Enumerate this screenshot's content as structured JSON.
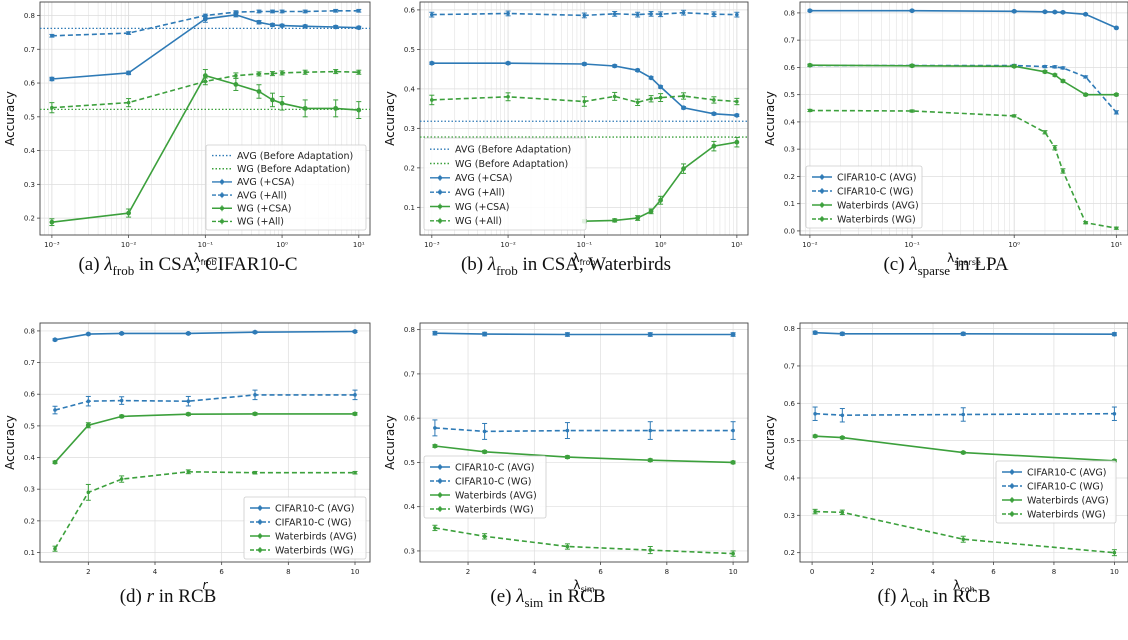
{
  "colors": {
    "blue": "#2e7ab6",
    "green": "#3ca03c",
    "grid": "#dddddd",
    "axis": "#444444"
  },
  "captions": [
    {
      "sym": "λ",
      "sub": "frob",
      "rest": " in CSA, CIFAR10-C",
      "label": "(a)"
    },
    {
      "sym": "λ",
      "sub": "frob",
      "rest": " in CSA, Waterbirds",
      "label": "(b)"
    },
    {
      "sym": "λ",
      "sub": "sparse",
      "rest": " in LPA",
      "label": "(c)"
    },
    {
      "sym": "r",
      "sub": "",
      "rest": " in RCB",
      "label": "(d)"
    },
    {
      "sym": "λ",
      "sub": "sim",
      "rest": " in RCB",
      "label": "(e)"
    },
    {
      "sym": "λ",
      "sub": "coh",
      "rest": " in RCB",
      "label": "(f)"
    }
  ],
  "chart_data": [
    {
      "type": "line",
      "xscale": "log",
      "xlim": [
        0.0007,
        14
      ],
      "ylim": [
        0.15,
        0.84
      ],
      "xticks": [
        0.001,
        0.01,
        0.1,
        1,
        10
      ],
      "xtick_labels": [
        "10⁻³",
        "10⁻²",
        "10⁻¹",
        "10⁰",
        "10¹"
      ],
      "yticks": [
        0.2,
        0.3,
        0.4,
        0.5,
        0.6,
        0.7,
        0.8
      ],
      "ytick_labels": [
        "0.2",
        "0.3",
        "0.4",
        "0.5",
        "0.6",
        "0.7",
        "0.8"
      ],
      "xlabel": "λ",
      "xlabel_sub": "frob",
      "ylabel": "Accuracy",
      "legend": "lower-right",
      "grid": true,
      "hlines": [
        {
          "name": "AVG (Before Adaptation)",
          "y": 0.762,
          "color": "blue"
        },
        {
          "name": "WG (Before Adaptation)",
          "y": 0.522,
          "color": "green"
        }
      ],
      "series": [
        {
          "name": "AVG (+CSA)",
          "color": "blue",
          "dash": false,
          "x": [
            0.001,
            0.01,
            0.1,
            0.25,
            0.5,
            0.75,
            1,
            2,
            5,
            10
          ],
          "y": [
            0.612,
            0.63,
            0.79,
            0.802,
            0.78,
            0.772,
            0.77,
            0.768,
            0.766,
            0.764
          ],
          "err": [
            0.005,
            0.005,
            0.01,
            0.006,
            0.005,
            0.004,
            0.004,
            0.004,
            0.004,
            0.004
          ]
        },
        {
          "name": "AVG (+All)",
          "color": "blue",
          "dash": true,
          "x": [
            0.001,
            0.01,
            0.1,
            0.25,
            0.5,
            0.75,
            1,
            2,
            5,
            10
          ],
          "y": [
            0.74,
            0.748,
            0.8,
            0.81,
            0.812,
            0.812,
            0.812,
            0.812,
            0.814,
            0.814
          ],
          "err": [
            0.004,
            0.004,
            0.004,
            0.004,
            0.004,
            0.004,
            0.004,
            0.004,
            0.004,
            0.004
          ]
        },
        {
          "name": "WG (+CSA)",
          "color": "green",
          "dash": false,
          "x": [
            0.001,
            0.01,
            0.1,
            0.25,
            0.5,
            0.75,
            1,
            2,
            5,
            10
          ],
          "y": [
            0.188,
            0.215,
            0.622,
            0.596,
            0.575,
            0.55,
            0.54,
            0.525,
            0.525,
            0.52
          ],
          "err": [
            0.01,
            0.012,
            0.018,
            0.018,
            0.02,
            0.02,
            0.02,
            0.025,
            0.025,
            0.025
          ]
        },
        {
          "name": "WG (+All)",
          "color": "green",
          "dash": true,
          "x": [
            0.001,
            0.01,
            0.1,
            0.25,
            0.5,
            0.75,
            1,
            2,
            5,
            10
          ],
          "y": [
            0.527,
            0.542,
            0.605,
            0.622,
            0.627,
            0.628,
            0.63,
            0.632,
            0.634,
            0.632
          ],
          "err": [
            0.015,
            0.012,
            0.01,
            0.008,
            0.006,
            0.006,
            0.006,
            0.006,
            0.006,
            0.006
          ]
        }
      ]
    },
    {
      "type": "line",
      "xscale": "log",
      "xlim": [
        0.0007,
        14
      ],
      "ylim": [
        0.03,
        0.62
      ],
      "xticks": [
        0.001,
        0.01,
        0.1,
        1,
        10
      ],
      "xtick_labels": [
        "10⁻³",
        "10⁻²",
        "10⁻¹",
        "10⁰",
        "10¹"
      ],
      "yticks": [
        0.1,
        0.2,
        0.3,
        0.4,
        0.5,
        0.6
      ],
      "ytick_labels": [
        "0.1",
        "0.2",
        "0.3",
        "0.4",
        "0.5",
        "0.6"
      ],
      "xlabel": "λ",
      "xlabel_sub": "frob",
      "ylabel": "Accuracy",
      "legend": "lower-left",
      "grid": true,
      "hlines": [
        {
          "name": "AVG (Before Adaptation)",
          "y": 0.318,
          "color": "blue"
        },
        {
          "name": "WG (Before Adaptation)",
          "y": 0.278,
          "color": "green"
        }
      ],
      "series": [
        {
          "name": "AVG (+CSA)",
          "color": "blue",
          "dash": false,
          "x": [
            0.001,
            0.01,
            0.1,
            0.25,
            0.5,
            0.75,
            1,
            2,
            5,
            10
          ],
          "y": [
            0.465,
            0.465,
            0.463,
            0.458,
            0.447,
            0.428,
            0.405,
            0.352,
            0.337,
            0.333
          ],
          "err": [
            0.003,
            0.003,
            0.003,
            0.003,
            0.003,
            0.003,
            0.003,
            0.003,
            0.003,
            0.003
          ]
        },
        {
          "name": "AVG (+All)",
          "color": "blue",
          "dash": true,
          "x": [
            0.001,
            0.01,
            0.1,
            0.25,
            0.5,
            0.75,
            1,
            2,
            5,
            10
          ],
          "y": [
            0.588,
            0.591,
            0.586,
            0.59,
            0.588,
            0.59,
            0.589,
            0.593,
            0.589,
            0.588
          ],
          "err": [
            0.006,
            0.006,
            0.006,
            0.006,
            0.006,
            0.006,
            0.006,
            0.006,
            0.006,
            0.006
          ]
        },
        {
          "name": "WG (+CSA)",
          "color": "green",
          "dash": false,
          "x": [
            0.1,
            0.25,
            0.5,
            0.75,
            1,
            2,
            5,
            10
          ],
          "y": [
            0.065,
            0.067,
            0.073,
            0.09,
            0.118,
            0.198,
            0.255,
            0.265
          ],
          "err": [
            0.004,
            0.004,
            0.006,
            0.006,
            0.01,
            0.012,
            0.012,
            0.012
          ]
        },
        {
          "name": "WG (+All)",
          "color": "green",
          "dash": true,
          "x": [
            0.001,
            0.01,
            0.1,
            0.25,
            0.5,
            0.75,
            1,
            2,
            5,
            10
          ],
          "y": [
            0.372,
            0.38,
            0.368,
            0.381,
            0.366,
            0.375,
            0.378,
            0.382,
            0.372,
            0.368
          ],
          "err": [
            0.012,
            0.01,
            0.012,
            0.01,
            0.008,
            0.008,
            0.01,
            0.008,
            0.008,
            0.008
          ]
        }
      ]
    },
    {
      "type": "line",
      "xscale": "log",
      "xlim": [
        0.008,
        13
      ],
      "ylim": [
        -0.015,
        0.84
      ],
      "xticks": [
        0.01,
        0.1,
        1,
        10
      ],
      "xtick_labels": [
        "10⁻²",
        "10⁻¹",
        "10⁰",
        "10¹"
      ],
      "yticks": [
        0.0,
        0.1,
        0.2,
        0.3,
        0.4,
        0.5,
        0.6,
        0.7,
        0.8
      ],
      "ytick_labels": [
        "0.0",
        "0.1",
        "0.2",
        "0.3",
        "0.4",
        "0.5",
        "0.6",
        "0.7",
        "0.8"
      ],
      "xlabel": "λ",
      "xlabel_sub": "sparse",
      "ylabel": "Accuracy",
      "legend": "lower-left",
      "grid": true,
      "hlines": [],
      "series": [
        {
          "name": "CIFAR10-C (AVG)",
          "color": "blue",
          "dash": false,
          "x": [
            0.01,
            0.1,
            1,
            2,
            2.5,
            3,
            5,
            10
          ],
          "y": [
            0.808,
            0.808,
            0.806,
            0.804,
            0.803,
            0.802,
            0.795,
            0.745
          ],
          "err": [
            0.003,
            0.003,
            0.003,
            0.003,
            0.003,
            0.003,
            0.003,
            0.003
          ]
        },
        {
          "name": "CIFAR10-C (WG)",
          "color": "blue",
          "dash": true,
          "x": [
            0.01,
            0.1,
            1,
            2,
            2.5,
            3,
            5,
            10
          ],
          "y": [
            0.607,
            0.607,
            0.607,
            0.603,
            0.602,
            0.598,
            0.565,
            0.435
          ],
          "err": [
            0.004,
            0.004,
            0.004,
            0.004,
            0.004,
            0.004,
            0.004,
            0.006
          ]
        },
        {
          "name": "Waterbirds (AVG)",
          "color": "green",
          "dash": false,
          "x": [
            0.01,
            0.1,
            1,
            2,
            2.5,
            3,
            5,
            10
          ],
          "y": [
            0.608,
            0.606,
            0.604,
            0.584,
            0.572,
            0.55,
            0.5,
            0.5
          ],
          "err": [
            0.004,
            0.004,
            0.004,
            0.004,
            0.004,
            0.004,
            0.004,
            0.004
          ]
        },
        {
          "name": "Waterbirds (WG)",
          "color": "green",
          "dash": true,
          "x": [
            0.01,
            0.1,
            1,
            2,
            2.5,
            3,
            5,
            10
          ],
          "y": [
            0.442,
            0.44,
            0.422,
            0.362,
            0.305,
            0.22,
            0.03,
            0.01
          ],
          "err": [
            0.004,
            0.004,
            0.004,
            0.006,
            0.008,
            0.008,
            0.004,
            0.004
          ]
        }
      ]
    },
    {
      "type": "line",
      "xscale": "linear",
      "xlim": [
        0.55,
        10.45
      ],
      "ylim": [
        0.07,
        0.825
      ],
      "xticks": [
        2,
        4,
        6,
        8,
        10
      ],
      "xtick_labels": [
        "2",
        "4",
        "6",
        "8",
        "10"
      ],
      "yticks": [
        0.1,
        0.2,
        0.3,
        0.4,
        0.5,
        0.6,
        0.7,
        0.8
      ],
      "ytick_labels": [
        "0.1",
        "0.2",
        "0.3",
        "0.4",
        "0.5",
        "0.6",
        "0.7",
        "0.8"
      ],
      "xlabel": "r",
      "xlabel_sub": "",
      "ylabel": "Accuracy",
      "legend": "lower-right",
      "grid": true,
      "hlines": [],
      "series": [
        {
          "name": "CIFAR10-C (AVG)",
          "color": "blue",
          "dash": false,
          "x": [
            1,
            2,
            3,
            5,
            7,
            10
          ],
          "y": [
            0.772,
            0.79,
            0.792,
            0.792,
            0.796,
            0.798
          ],
          "err": [
            0.003,
            0.003,
            0.003,
            0.003,
            0.003,
            0.003
          ]
        },
        {
          "name": "CIFAR10-C (WG)",
          "color": "blue",
          "dash": true,
          "x": [
            1,
            2,
            3,
            5,
            7,
            10
          ],
          "y": [
            0.55,
            0.578,
            0.58,
            0.578,
            0.598,
            0.598
          ],
          "err": [
            0.012,
            0.015,
            0.012,
            0.015,
            0.015,
            0.015
          ]
        },
        {
          "name": "Waterbirds (AVG)",
          "color": "green",
          "dash": false,
          "x": [
            1,
            2,
            3,
            5,
            7,
            10
          ],
          "y": [
            0.385,
            0.502,
            0.53,
            0.537,
            0.538,
            0.538
          ],
          "err": [
            0.004,
            0.008,
            0.004,
            0.004,
            0.004,
            0.004
          ]
        },
        {
          "name": "Waterbirds (WG)",
          "color": "green",
          "dash": true,
          "x": [
            1,
            2,
            3,
            5,
            7,
            10
          ],
          "y": [
            0.112,
            0.29,
            0.332,
            0.355,
            0.352,
            0.352
          ],
          "err": [
            0.008,
            0.025,
            0.01,
            0.006,
            0.004,
            0.004
          ]
        }
      ]
    },
    {
      "type": "line",
      "xscale": "linear",
      "xlim": [
        0.55,
        10.45
      ],
      "ylim": [
        0.275,
        0.815
      ],
      "xticks": [
        2,
        4,
        6,
        8,
        10
      ],
      "xtick_labels": [
        "2",
        "4",
        "6",
        "8",
        "10"
      ],
      "yticks": [
        0.3,
        0.4,
        0.5,
        0.6,
        0.7,
        0.8
      ],
      "ytick_labels": [
        "0.3",
        "0.4",
        "0.5",
        "0.6",
        "0.7",
        "0.8"
      ],
      "xlabel": "λ",
      "xlabel_sub": "sim",
      "ylabel": "Accuracy",
      "legend": "center-left",
      "grid": true,
      "hlines": [],
      "series": [
        {
          "name": "CIFAR10-C (AVG)",
          "color": "blue",
          "dash": false,
          "x": [
            1,
            2.5,
            5,
            7.5,
            10
          ],
          "y": [
            0.792,
            0.79,
            0.789,
            0.789,
            0.789
          ],
          "err": [
            0.004,
            0.004,
            0.004,
            0.004,
            0.004
          ]
        },
        {
          "name": "CIFAR10-C (WG)",
          "color": "blue",
          "dash": true,
          "x": [
            1,
            2.5,
            5,
            7.5,
            10
          ],
          "y": [
            0.578,
            0.57,
            0.572,
            0.572,
            0.572
          ],
          "err": [
            0.018,
            0.018,
            0.018,
            0.02,
            0.02
          ]
        },
        {
          "name": "Waterbirds (AVG)",
          "color": "green",
          "dash": false,
          "x": [
            1,
            2.5,
            5,
            7.5,
            10
          ],
          "y": [
            0.537,
            0.524,
            0.512,
            0.505,
            0.5
          ],
          "err": [
            0.003,
            0.003,
            0.003,
            0.003,
            0.003
          ]
        },
        {
          "name": "Waterbirds (WG)",
          "color": "green",
          "dash": true,
          "x": [
            1,
            2.5,
            5,
            7.5,
            10
          ],
          "y": [
            0.352,
            0.333,
            0.31,
            0.302,
            0.294
          ],
          "err": [
            0.006,
            0.006,
            0.006,
            0.008,
            0.006
          ]
        }
      ]
    },
    {
      "type": "line",
      "xscale": "linear",
      "xlim": [
        -0.4,
        10.45
      ],
      "ylim": [
        0.175,
        0.815
      ],
      "xticks": [
        0,
        2,
        4,
        6,
        8,
        10
      ],
      "xtick_labels": [
        "0",
        "2",
        "4",
        "6",
        "8",
        "10"
      ],
      "yticks": [
        0.2,
        0.3,
        0.4,
        0.5,
        0.6,
        0.7,
        0.8
      ],
      "ytick_labels": [
        "0.2",
        "0.3",
        "0.4",
        "0.5",
        "0.6",
        "0.7",
        "0.8"
      ],
      "xlabel": "λ",
      "xlabel_sub": "coh",
      "ylabel": "Accuracy",
      "legend": "center-right",
      "grid": true,
      "hlines": [],
      "series": [
        {
          "name": "CIFAR10-C (AVG)",
          "color": "blue",
          "dash": false,
          "x": [
            0.1,
            1,
            5,
            10
          ],
          "y": [
            0.789,
            0.786,
            0.786,
            0.785
          ],
          "err": [
            0.004,
            0.004,
            0.004,
            0.004
          ]
        },
        {
          "name": "CIFAR10-C (WG)",
          "color": "blue",
          "dash": true,
          "x": [
            0.1,
            1,
            5,
            10
          ],
          "y": [
            0.572,
            0.568,
            0.57,
            0.572
          ],
          "err": [
            0.018,
            0.018,
            0.018,
            0.018
          ]
        },
        {
          "name": "Waterbirds (AVG)",
          "color": "green",
          "dash": false,
          "x": [
            0.1,
            1,
            5,
            10
          ],
          "y": [
            0.512,
            0.508,
            0.468,
            0.446
          ],
          "err": [
            0.003,
            0.003,
            0.003,
            0.003
          ]
        },
        {
          "name": "Waterbirds (WG)",
          "color": "green",
          "dash": true,
          "x": [
            0.1,
            1,
            5,
            10
          ],
          "y": [
            0.31,
            0.308,
            0.236,
            0.2
          ],
          "err": [
            0.006,
            0.006,
            0.008,
            0.008
          ]
        }
      ]
    }
  ]
}
